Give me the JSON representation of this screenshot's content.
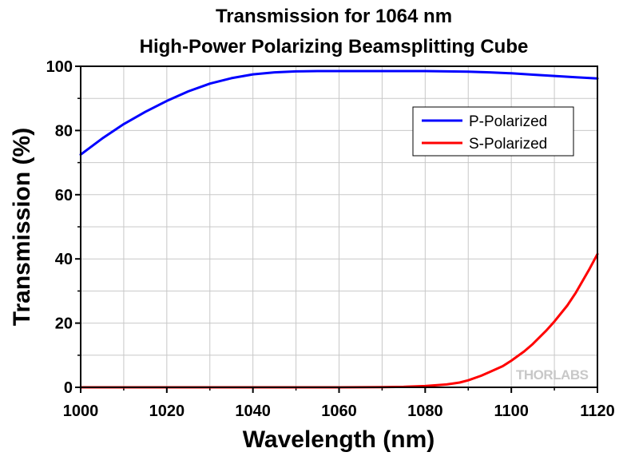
{
  "chart_data": {
    "type": "line",
    "title": "Transmission for 1064 nm",
    "subtitle": "High-Power Polarizing Beamsplitting Cube",
    "xlabel": "Wavelength (nm)",
    "ylabel": "Transmission (%)",
    "xlim": [
      1000,
      1120
    ],
    "ylim": [
      0,
      100
    ],
    "xticks": [
      1000,
      1020,
      1040,
      1060,
      1080,
      1100,
      1120
    ],
    "yticks": [
      0,
      20,
      40,
      60,
      80,
      100
    ],
    "grid": true,
    "legend_position": "top-right",
    "series": [
      {
        "name": "P-Polarized",
        "color": "#0000ff",
        "x": [
          1000,
          1005,
          1010,
          1015,
          1020,
          1025,
          1030,
          1035,
          1040,
          1045,
          1050,
          1055,
          1060,
          1065,
          1070,
          1075,
          1080,
          1085,
          1090,
          1095,
          1100,
          1105,
          1110,
          1115,
          1120
        ],
        "y": [
          72.5,
          77.5,
          82.0,
          85.8,
          89.2,
          92.2,
          94.6,
          96.3,
          97.5,
          98.1,
          98.4,
          98.5,
          98.5,
          98.5,
          98.5,
          98.5,
          98.5,
          98.4,
          98.3,
          98.1,
          97.8,
          97.4,
          97.0,
          96.6,
          96.2
        ]
      },
      {
        "name": "S-Polarized",
        "color": "#ff0000",
        "x": [
          1000,
          1010,
          1020,
          1030,
          1040,
          1050,
          1060,
          1070,
          1075,
          1080,
          1085,
          1088,
          1090,
          1093,
          1095,
          1098,
          1100,
          1103,
          1105,
          1108,
          1110,
          1113,
          1115,
          1118,
          1120
        ],
        "y": [
          0,
          0,
          0,
          0,
          0,
          0,
          0,
          0.05,
          0.15,
          0.4,
          0.9,
          1.5,
          2.2,
          3.6,
          4.8,
          6.6,
          8.3,
          11.2,
          13.5,
          17.5,
          20.5,
          25.5,
          29.5,
          36.5,
          41.5
        ]
      }
    ],
    "watermark": "THORLABS"
  }
}
